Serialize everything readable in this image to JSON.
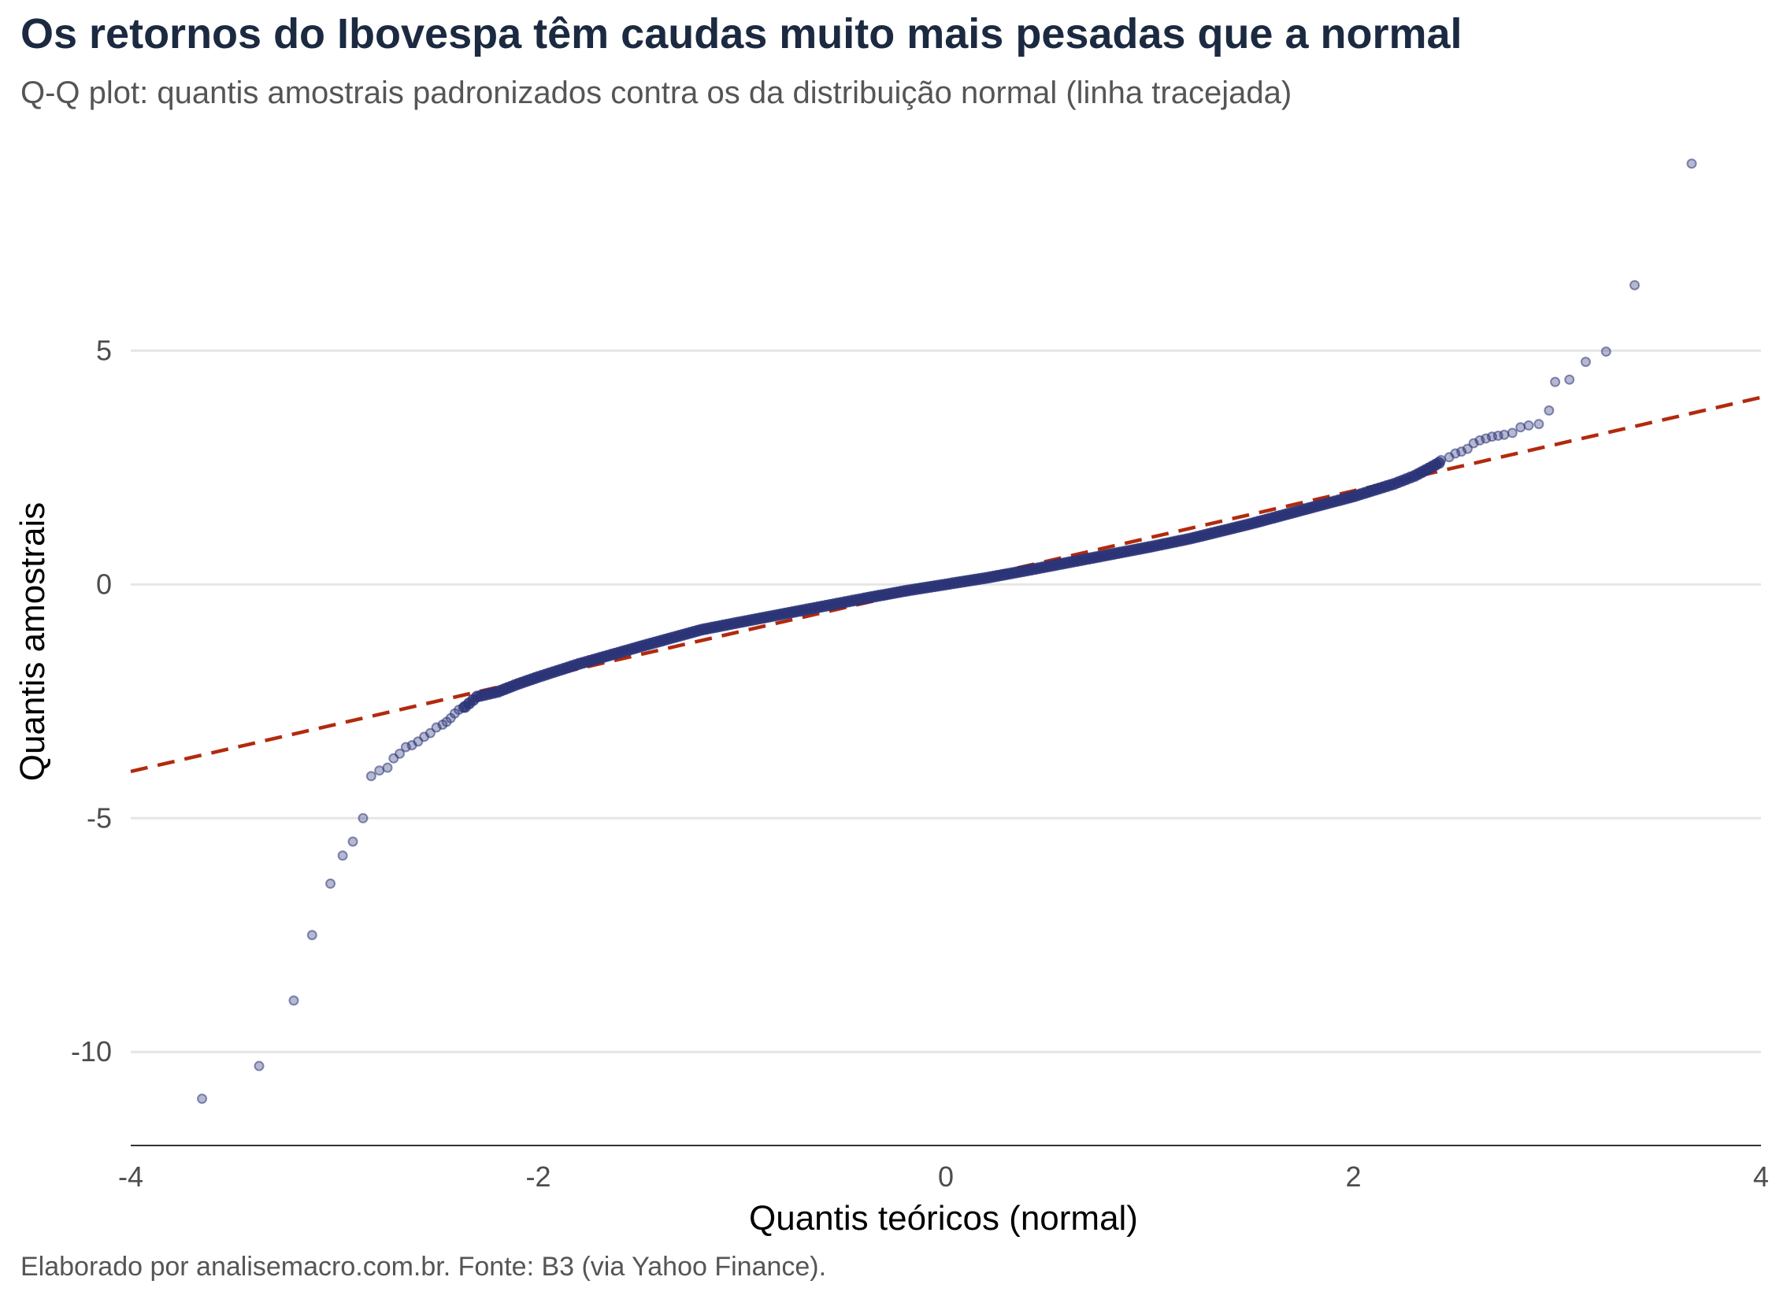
{
  "title": "Os retornos do Ibovespa têm caudas muito mais pesadas que a normal",
  "subtitle": "Q-Q plot: quantis amostrais padronizados contra os da distribuição normal (linha tracejada)",
  "caption": "Elaborado por analisemacro.com.br. Fonte: B3 (via Yahoo Finance).",
  "chart_data": {
    "type": "scatter",
    "xlabel": "Quantis teóricos (normal)",
    "ylabel": "Quantis amostrais",
    "xlim": [
      -4,
      4
    ],
    "ylim": [
      -12,
      9.3
    ],
    "x_ticks": [
      -4,
      -2,
      0,
      2,
      4
    ],
    "y_ticks": [
      -10,
      -5,
      0,
      5
    ],
    "x_tick_labels": [
      "-4",
      "-2",
      "0",
      "2",
      "4"
    ],
    "y_tick_labels": [
      "-10",
      "-5",
      "0",
      "5"
    ],
    "grid": "horizontal major gridlines",
    "colors": {
      "points": "#2b3478",
      "reference_line": "#b22a0e"
    },
    "reference_line": {
      "style": "dashed",
      "slope": 1,
      "intercept": 0
    },
    "outlier_points": [
      {
        "x": -3.65,
        "y": -11.0
      },
      {
        "x": -3.37,
        "y": -10.3
      },
      {
        "x": -3.2,
        "y": -8.9
      },
      {
        "x": -3.11,
        "y": -7.5
      },
      {
        "x": -3.02,
        "y": -6.4
      },
      {
        "x": -2.96,
        "y": -5.8
      },
      {
        "x": -2.91,
        "y": -5.5
      },
      {
        "x": -2.86,
        "y": -5.0
      },
      {
        "x": -2.82,
        "y": -4.1
      },
      {
        "x": -2.78,
        "y": -3.98
      },
      {
        "x": -2.74,
        "y": -3.92
      },
      {
        "x": -2.71,
        "y": -3.72
      },
      {
        "x": -2.68,
        "y": -3.62
      },
      {
        "x": -2.65,
        "y": -3.48
      },
      {
        "x": -2.62,
        "y": -3.44
      },
      {
        "x": -2.59,
        "y": -3.36
      },
      {
        "x": -2.56,
        "y": -3.26
      },
      {
        "x": -2.53,
        "y": -3.18
      },
      {
        "x": -2.5,
        "y": -3.06
      },
      {
        "x": -2.47,
        "y": -3.0
      },
      {
        "x": -2.45,
        "y": -2.94
      },
      {
        "x": -2.43,
        "y": -2.86
      },
      {
        "x": -2.41,
        "y": -2.76
      },
      {
        "x": -2.39,
        "y": -2.68
      },
      {
        "x": -2.37,
        "y": -2.64
      },
      {
        "x": 2.43,
        "y": 2.66
      },
      {
        "x": 2.47,
        "y": 2.72
      },
      {
        "x": 2.5,
        "y": 2.8
      },
      {
        "x": 2.53,
        "y": 2.84
      },
      {
        "x": 2.56,
        "y": 2.9
      },
      {
        "x": 2.59,
        "y": 3.02
      },
      {
        "x": 2.62,
        "y": 3.08
      },
      {
        "x": 2.65,
        "y": 3.12
      },
      {
        "x": 2.68,
        "y": 3.16
      },
      {
        "x": 2.71,
        "y": 3.18
      },
      {
        "x": 2.74,
        "y": 3.2
      },
      {
        "x": 2.78,
        "y": 3.24
      },
      {
        "x": 2.82,
        "y": 3.36
      },
      {
        "x": 2.86,
        "y": 3.4
      },
      {
        "x": 2.91,
        "y": 3.43
      },
      {
        "x": 2.96,
        "y": 3.72
      },
      {
        "x": 2.99,
        "y": 4.33
      },
      {
        "x": 3.06,
        "y": 4.38
      },
      {
        "x": 3.14,
        "y": 4.76
      },
      {
        "x": 3.24,
        "y": 4.98
      },
      {
        "x": 3.38,
        "y": 6.4
      },
      {
        "x": 3.66,
        "y": 9.0
      }
    ],
    "body_curve": [
      {
        "x": -2.36,
        "y": -2.62
      },
      {
        "x": -2.3,
        "y": -2.4
      },
      {
        "x": -2.2,
        "y": -2.3
      },
      {
        "x": -2.1,
        "y": -2.13
      },
      {
        "x": -2.0,
        "y": -1.98
      },
      {
        "x": -1.8,
        "y": -1.7
      },
      {
        "x": -1.5,
        "y": -1.33
      },
      {
        "x": -1.2,
        "y": -0.97
      },
      {
        "x": -1.0,
        "y": -0.8
      },
      {
        "x": -0.7,
        "y": -0.55
      },
      {
        "x": -0.4,
        "y": -0.3
      },
      {
        "x": -0.2,
        "y": -0.14
      },
      {
        "x": 0.0,
        "y": 0.0
      },
      {
        "x": 0.2,
        "y": 0.14
      },
      {
        "x": 0.4,
        "y": 0.3
      },
      {
        "x": 0.7,
        "y": 0.55
      },
      {
        "x": 1.0,
        "y": 0.8
      },
      {
        "x": 1.2,
        "y": 0.98
      },
      {
        "x": 1.5,
        "y": 1.3
      },
      {
        "x": 1.8,
        "y": 1.65
      },
      {
        "x": 2.0,
        "y": 1.88
      },
      {
        "x": 2.2,
        "y": 2.15
      },
      {
        "x": 2.3,
        "y": 2.32
      },
      {
        "x": 2.37,
        "y": 2.48
      },
      {
        "x": 2.42,
        "y": 2.6
      }
    ]
  }
}
